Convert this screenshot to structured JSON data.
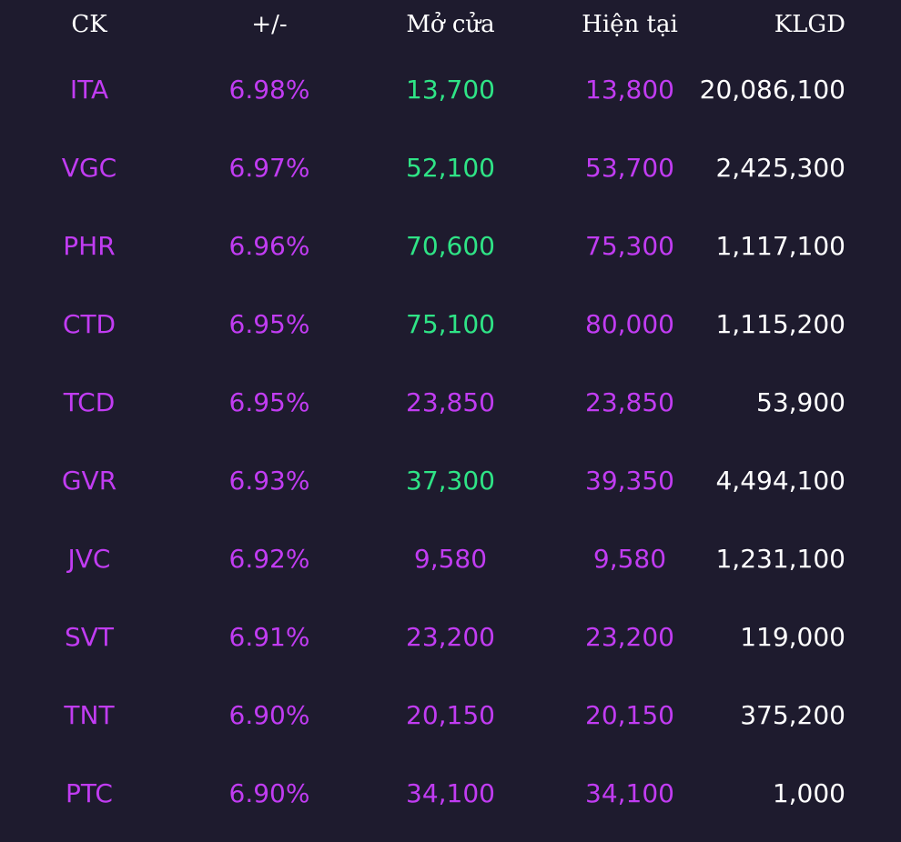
{
  "header": {
    "ck": "CK",
    "change": "+/-",
    "open": "Mở cửa",
    "current": "Hiện tại",
    "volume": "KLGD"
  },
  "colors": {
    "background": "#1e1b2e",
    "ceiling_purple": "#c13cf2",
    "up_green": "#2fe486",
    "text_white": "#ffffff"
  },
  "rows": [
    {
      "ck": "ITA",
      "change": "6.98%",
      "open": "13,700",
      "open_color": "green",
      "current": "13,800",
      "volume": "20,086,100"
    },
    {
      "ck": "VGC",
      "change": "6.97%",
      "open": "52,100",
      "open_color": "green",
      "current": "53,700",
      "volume": "2,425,300"
    },
    {
      "ck": "PHR",
      "change": "6.96%",
      "open": "70,600",
      "open_color": "green",
      "current": "75,300",
      "volume": "1,117,100"
    },
    {
      "ck": "CTD",
      "change": "6.95%",
      "open": "75,100",
      "open_color": "green",
      "current": "80,000",
      "volume": "1,115,200"
    },
    {
      "ck": "TCD",
      "change": "6.95%",
      "open": "23,850",
      "open_color": "purple",
      "current": "23,850",
      "volume": "53,900"
    },
    {
      "ck": "GVR",
      "change": "6.93%",
      "open": "37,300",
      "open_color": "green",
      "current": "39,350",
      "volume": "4,494,100"
    },
    {
      "ck": "JVC",
      "change": "6.92%",
      "open": "9,580",
      "open_color": "purple",
      "current": "9,580",
      "volume": "1,231,100"
    },
    {
      "ck": "SVT",
      "change": "6.91%",
      "open": "23,200",
      "open_color": "purple",
      "current": "23,200",
      "volume": "119,000"
    },
    {
      "ck": "TNT",
      "change": "6.90%",
      "open": "20,150",
      "open_color": "purple",
      "current": "20,150",
      "volume": "375,200"
    },
    {
      "ck": "PTC",
      "change": "6.90%",
      "open": "34,100",
      "open_color": "purple",
      "current": "34,100",
      "volume": "1,000"
    }
  ]
}
